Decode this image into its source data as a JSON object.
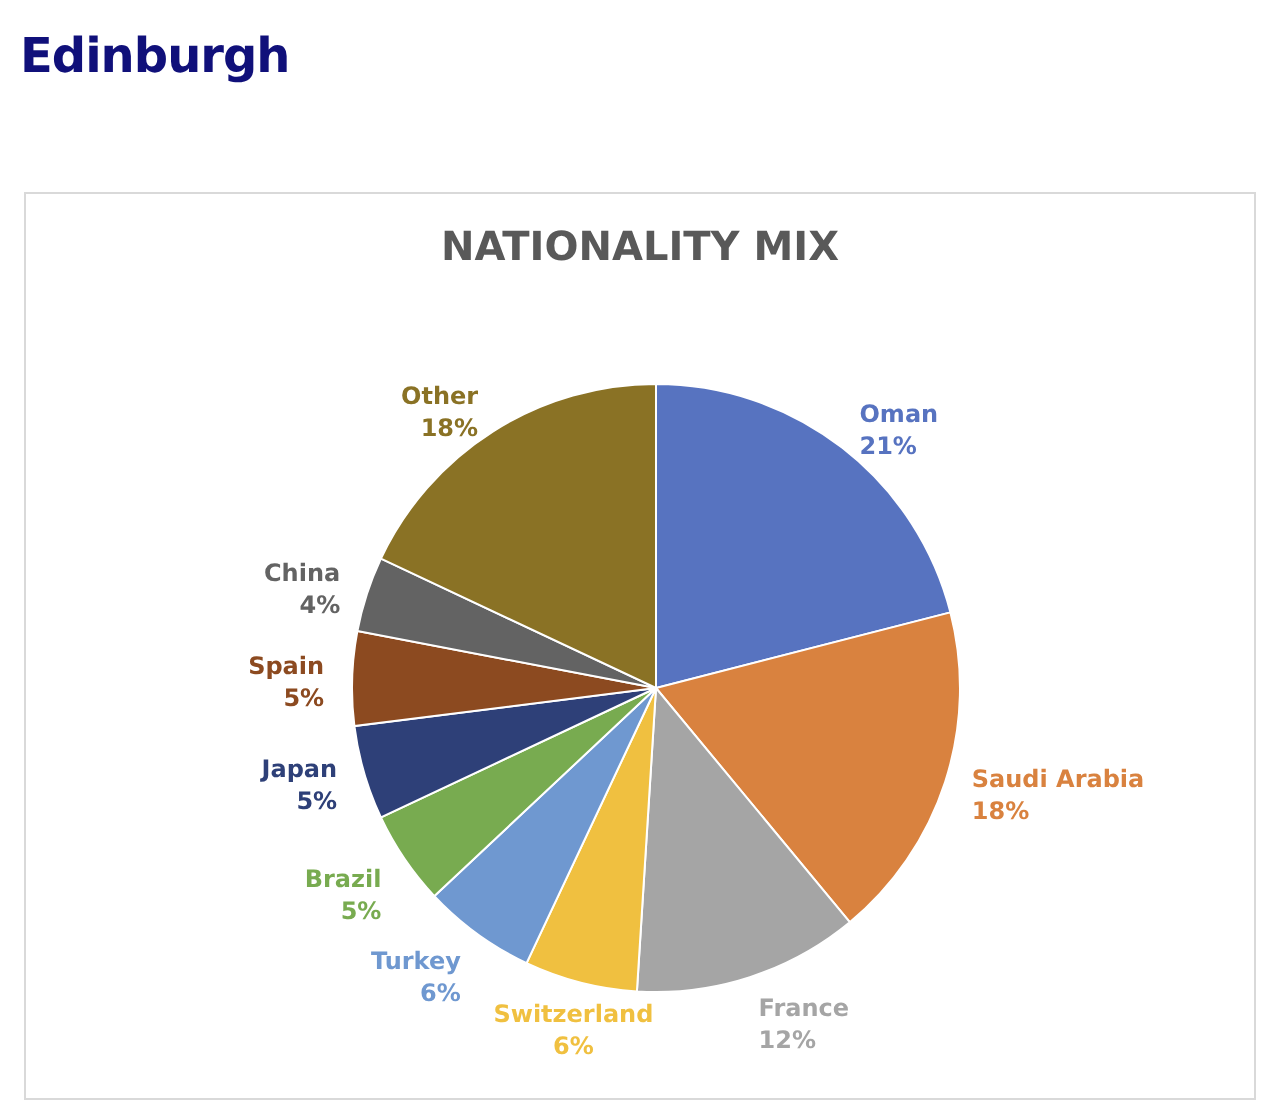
{
  "chart_data": {
    "type": "pie",
    "title": "NATIONALITY MIX",
    "annotations": [
      "Edinburgh"
    ],
    "categories": [
      "Oman",
      "Saudi Arabia",
      "France",
      "Switzerland",
      "Turkey",
      "Brazil",
      "Japan",
      "Spain",
      "China",
      "Other"
    ],
    "values": [
      21,
      18,
      12,
      6,
      6,
      5,
      5,
      5,
      4,
      18
    ],
    "colors": [
      "#5773c0",
      "#d9823f",
      "#a5a5a5",
      "#f0c040",
      "#6f98d0",
      "#78ab50",
      "#2e4078",
      "#8c4a20",
      "#636363",
      "#8a7225"
    ],
    "value_labels": [
      "21%",
      "18%",
      "12%",
      "6%",
      "6%",
      "5%",
      "5%",
      "5%",
      "4%",
      "18%"
    ]
  }
}
